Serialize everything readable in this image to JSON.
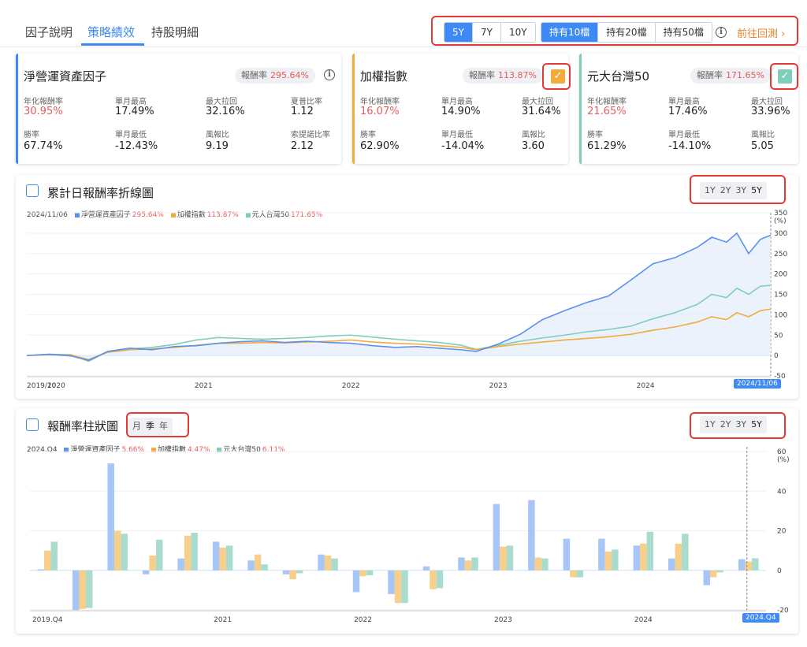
{
  "tabs": [
    {
      "label": "因子說明",
      "active": false
    },
    {
      "label": "策略績效",
      "active": true
    },
    {
      "label": "持股明細",
      "active": false
    }
  ],
  "period_options": [
    "5Y",
    "7Y",
    "10Y"
  ],
  "period_selected": "5Y",
  "hold_options": [
    "持有10檔",
    "持有20檔",
    "持有50檔"
  ],
  "hold_selected": "持有10檔",
  "goto_backtest": "前往回測",
  "cards": [
    {
      "title": "淨營運資產因子",
      "return_label": "報酬率",
      "return_value": "295.64%",
      "accent": "#3d8af7",
      "stats": [
        {
          "label": "年化報酬率",
          "value": "30.95%",
          "highlight": true
        },
        {
          "label": "單月最高",
          "value": "17.49%"
        },
        {
          "label": "最大拉回",
          "value": "32.16%"
        },
        {
          "label": "夏普比率",
          "value": "1.12"
        },
        {
          "label": "勝率",
          "value": "67.74%"
        },
        {
          "label": "單月最低",
          "value": "-12.43%"
        },
        {
          "label": "風報比",
          "value": "9.19"
        },
        {
          "label": "索提諾比率",
          "value": "2.12"
        }
      ]
    },
    {
      "title": "加權指數",
      "return_label": "報酬率",
      "return_value": "113.87%",
      "accent": "#f2ac3b",
      "checked": true,
      "stats": [
        {
          "label": "年化報酬率",
          "value": "16.07%",
          "highlight": true
        },
        {
          "label": "單月最高",
          "value": "14.90%"
        },
        {
          "label": "最大拉回",
          "value": "31.64%"
        },
        {
          "label": "勝率",
          "value": "62.90%"
        },
        {
          "label": "單月最低",
          "value": "-14.04%"
        },
        {
          "label": "風報比",
          "value": "3.60"
        }
      ]
    },
    {
      "title": "元大台灣50",
      "return_label": "報酬率",
      "return_value": "171.65%",
      "accent": "#7fcdbb",
      "checked": true,
      "stats": [
        {
          "label": "年化報酬率",
          "value": "21.65%",
          "highlight": true
        },
        {
          "label": "單月最高",
          "value": "17.46%"
        },
        {
          "label": "最大拉回",
          "value": "33.96%"
        },
        {
          "label": "勝率",
          "value": "61.29%"
        },
        {
          "label": "單月最低",
          "value": "-14.10%"
        },
        {
          "label": "風報比",
          "value": "5.05"
        }
      ]
    }
  ],
  "line_panel": {
    "title": "累計日報酬率折線圖",
    "ranges": [
      "1Y",
      "2Y",
      "3Y",
      "5Y"
    ],
    "range_selected": "5Y",
    "legend_date": "2024/11/06",
    "legend": [
      {
        "name": "淨營運資產因子",
        "value": "295.64%",
        "color": "#5b8ff0"
      },
      {
        "name": "加權指數",
        "value": "113.87%",
        "color": "#f2ac3b"
      },
      {
        "name": "元大台灣50",
        "value": "171.65%",
        "color": "#7fcdbb"
      }
    ],
    "date_tag": "2024/11/06"
  },
  "bar_panel": {
    "title": "報酬率柱狀圖",
    "freq_options": [
      "月",
      "季",
      "年"
    ],
    "freq_selected": "季",
    "ranges": [
      "1Y",
      "2Y",
      "3Y",
      "5Y"
    ],
    "range_selected": "5Y",
    "legend_date": "2024.Q4",
    "legend": [
      {
        "name": "淨營運資產因子",
        "value": "5.66%",
        "color": "#a8c6f5"
      },
      {
        "name": "加權指數",
        "value": "4.47%",
        "color": "#f8cf8a"
      },
      {
        "name": "元大台灣50",
        "value": "6.11%",
        "color": "#a9dccf"
      }
    ],
    "date_tag": "2024.Q4"
  },
  "chart_data": [
    {
      "type": "line",
      "title": "累計日報酬率折線圖",
      "ylabel": "(%)",
      "ylim": [
        -50,
        350
      ],
      "yticks": [
        -50,
        0,
        50,
        100,
        150,
        200,
        250,
        300,
        350
      ],
      "xticks": [
        "2019/10",
        "2020",
        "2021",
        "2022",
        "2023",
        "2024",
        "2024/11/06"
      ],
      "x": [
        2019.8,
        2019.95,
        2020.1,
        2020.22,
        2020.35,
        2020.5,
        2020.65,
        2020.8,
        2020.95,
        2021.1,
        2021.25,
        2021.4,
        2021.55,
        2021.7,
        2021.85,
        2022.0,
        2022.15,
        2022.3,
        2022.45,
        2022.6,
        2022.75,
        2022.85,
        2023.0,
        2023.15,
        2023.3,
        2023.45,
        2023.6,
        2023.75,
        2023.9,
        2024.05,
        2024.2,
        2024.35,
        2024.45,
        2024.55,
        2024.62,
        2024.7,
        2024.78,
        2024.85
      ],
      "series": [
        {
          "name": "淨營運資產因子",
          "color": "#5b8ff0",
          "values": [
            0,
            3,
            -1,
            -12,
            10,
            18,
            14,
            22,
            24,
            30,
            34,
            36,
            32,
            35,
            32,
            30,
            24,
            20,
            22,
            18,
            14,
            10,
            28,
            52,
            88,
            110,
            130,
            146,
            185,
            225,
            240,
            265,
            290,
            278,
            300,
            250,
            285,
            295
          ]
        },
        {
          "name": "加權指數",
          "color": "#f2ac3b",
          "values": [
            0,
            2,
            1,
            -10,
            8,
            14,
            16,
            20,
            25,
            30,
            30,
            32,
            31,
            33,
            35,
            38,
            33,
            30,
            28,
            24,
            20,
            14,
            22,
            28,
            33,
            38,
            42,
            46,
            52,
            62,
            70,
            82,
            95,
            88,
            105,
            95,
            110,
            114
          ]
        },
        {
          "name": "元大台灣50",
          "color": "#7fcdbb",
          "values": [
            0,
            3,
            2,
            -14,
            10,
            16,
            20,
            27,
            38,
            44,
            42,
            40,
            42,
            44,
            48,
            50,
            45,
            40,
            36,
            32,
            25,
            15,
            25,
            35,
            43,
            50,
            58,
            64,
            72,
            90,
            105,
            125,
            150,
            142,
            165,
            150,
            170,
            172
          ]
        }
      ]
    },
    {
      "type": "bar",
      "title": "報酬率柱狀圖",
      "ylabel": "(%)",
      "ylim": [
        -20,
        60
      ],
      "yticks": [
        -20,
        0,
        20,
        40,
        60
      ],
      "categories": [
        "2019.Q4",
        "2020.Q1",
        "2020.Q2",
        "2020.Q3",
        "2020.Q4",
        "2021.Q1",
        "2021.Q2",
        "2021.Q3",
        "2021.Q4",
        "2022.Q1",
        "2022.Q2",
        "2022.Q3",
        "2022.Q4",
        "2023.Q1",
        "2023.Q2",
        "2023.Q3",
        "2023.Q4",
        "2024.Q1",
        "2024.Q2",
        "2024.Q3",
        "2024.Q4"
      ],
      "xticks": [
        {
          "label": "2019.Q4",
          "index": 0
        },
        {
          "label": "2021",
          "index": 5
        },
        {
          "label": "2022",
          "index": 9
        },
        {
          "label": "2023",
          "index": 13
        },
        {
          "label": "2024",
          "index": 17
        }
      ],
      "series": [
        {
          "name": "淨營運資產因子",
          "color": "#a8c6f5",
          "values": [
            0.5,
            -20,
            54,
            -2,
            6,
            14.5,
            5,
            -2,
            8,
            -11,
            -12,
            2,
            6.5,
            33.5,
            35.5,
            16,
            16,
            12.5,
            6,
            -7.5,
            5.66
          ]
        },
        {
          "name": "加權指數",
          "color": "#f8cf8a",
          "values": [
            10,
            -19.5,
            20,
            7.5,
            17.5,
            11.5,
            8,
            -4.5,
            7.5,
            -3,
            -16.5,
            -9.5,
            5,
            12,
            6.5,
            -3.5,
            9.5,
            13.5,
            13.5,
            -3.5,
            4.47
          ]
        },
        {
          "name": "元大台灣50",
          "color": "#a9dccf",
          "values": [
            14.5,
            -19,
            18.5,
            15.5,
            19,
            12.5,
            3,
            -1.5,
            6,
            -2.5,
            -16.5,
            -9,
            6.5,
            12.5,
            6,
            -3.5,
            10.5,
            19.5,
            18.5,
            -1,
            6.11
          ]
        }
      ]
    }
  ]
}
